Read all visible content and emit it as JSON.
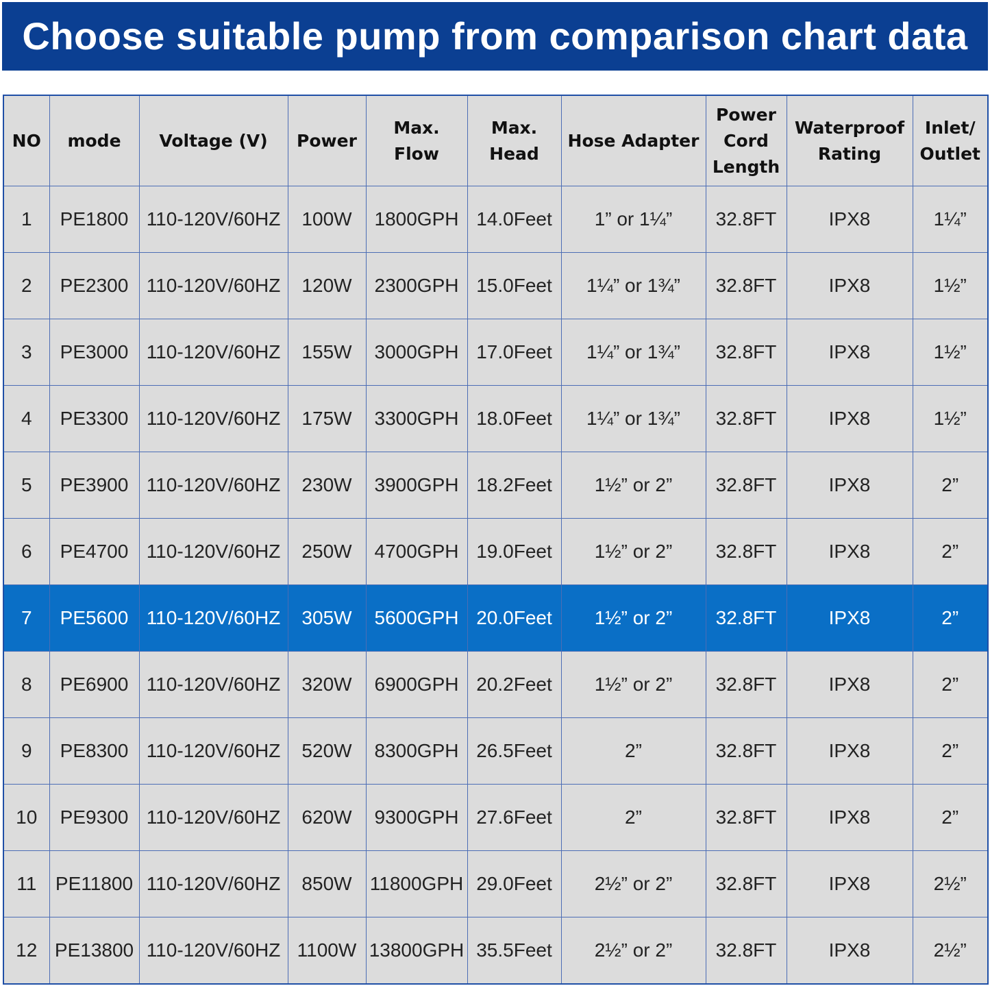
{
  "header": {
    "title": "Choose suitable pump from comparison chart data"
  },
  "table": {
    "columns": [
      "NO",
      "mode",
      "Voltage (V)",
      "Power",
      "Max.\nFlow",
      "Max.\nHead",
      "Hose Adapter",
      "Power\nCord\nLength",
      "Waterproof\nRating",
      "Inlet/\nOutlet"
    ],
    "rows": [
      [
        "1",
        "PE1800",
        "110-120V/60HZ",
        "100W",
        "1800GPH",
        "14.0Feet",
        "1” or 1¼”",
        "32.8FT",
        "IPX8",
        "1¼”"
      ],
      [
        "2",
        "PE2300",
        "110-120V/60HZ",
        "120W",
        "2300GPH",
        "15.0Feet",
        "1¼” or 1¾”",
        "32.8FT",
        "IPX8",
        "1½”"
      ],
      [
        "3",
        "PE3000",
        "110-120V/60HZ",
        "155W",
        "3000GPH",
        "17.0Feet",
        "1¼” or 1¾”",
        "32.8FT",
        "IPX8",
        "1½”"
      ],
      [
        "4",
        "PE3300",
        "110-120V/60HZ",
        "175W",
        "3300GPH",
        "18.0Feet",
        "1¼” or 1¾”",
        "32.8FT",
        "IPX8",
        "1½”"
      ],
      [
        "5",
        "PE3900",
        "110-120V/60HZ",
        "230W",
        "3900GPH",
        "18.2Feet",
        "1½” or 2”",
        "32.8FT",
        "IPX8",
        "2”"
      ],
      [
        "6",
        "PE4700",
        "110-120V/60HZ",
        "250W",
        "4700GPH",
        "19.0Feet",
        "1½” or 2”",
        "32.8FT",
        "IPX8",
        "2”"
      ],
      [
        "7",
        "PE5600",
        "110-120V/60HZ",
        "305W",
        "5600GPH",
        "20.0Feet",
        "1½” or 2”",
        "32.8FT",
        "IPX8",
        "2”"
      ],
      [
        "8",
        "PE6900",
        "110-120V/60HZ",
        "320W",
        "6900GPH",
        "20.2Feet",
        "1½” or 2”",
        "32.8FT",
        "IPX8",
        "2”"
      ],
      [
        "9",
        "PE8300",
        "110-120V/60HZ",
        "520W",
        "8300GPH",
        "26.5Feet",
        "2”",
        "32.8FT",
        "IPX8",
        "2”"
      ],
      [
        "10",
        "PE9300",
        "110-120V/60HZ",
        "620W",
        "9300GPH",
        "27.6Feet",
        "2”",
        "32.8FT",
        "IPX8",
        "2”"
      ],
      [
        "11",
        "PE11800",
        "110-120V/60HZ",
        "850W",
        "11800GPH",
        "29.0Feet",
        "2½” or 2”",
        "32.8FT",
        "IPX8",
        "2½”"
      ],
      [
        "12",
        "PE13800",
        "110-120V/60HZ",
        "1100W",
        "13800GPH",
        "35.5Feet",
        "2½” or 2”",
        "32.8FT",
        "IPX8",
        "2½”"
      ]
    ]
  }
}
